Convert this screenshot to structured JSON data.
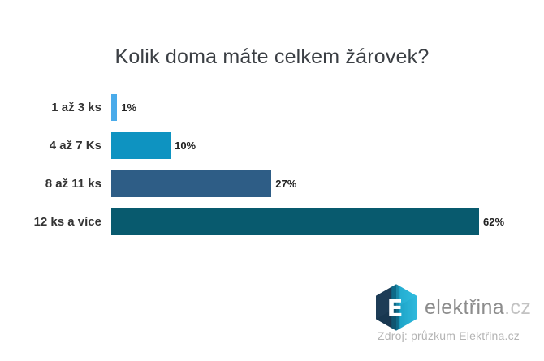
{
  "chart_data": {
    "type": "bar",
    "orientation": "horizontal",
    "title": "Kolik doma máte celkem žárovek?",
    "categories": [
      "1 až 3 ks",
      "4 až 7 Ks",
      "8 až 11 ks",
      "12 ks a více"
    ],
    "values": [
      1,
      10,
      27,
      62
    ],
    "value_labels": [
      "1%",
      "10%",
      "27%",
      "62%"
    ],
    "bar_colors": [
      "#4aabea",
      "#0e93c1",
      "#2e5d86",
      "#085a6e"
    ],
    "xlabel": "",
    "ylabel": "",
    "xlim": [
      0,
      65
    ],
    "grid": false,
    "legend": false,
    "value_label_position": "outside-end"
  },
  "brand": {
    "name": "elektřina",
    "tld": ".cz",
    "logo_letter": "E",
    "logo_colors": {
      "dark": "#1d3c56",
      "mid": "#0f6a88",
      "light": "#2fb9dc"
    }
  },
  "source": {
    "text": "Zdroj: průzkum Elektřina.cz"
  },
  "colors": {
    "background": "#ffffff",
    "title_text": "#3b3f44",
    "category_text": "#343434",
    "value_text": "#222222",
    "brand_text": "#8d8d8d",
    "brand_tld_text": "#c3c3c3",
    "source_text": "#b4b4b4"
  }
}
